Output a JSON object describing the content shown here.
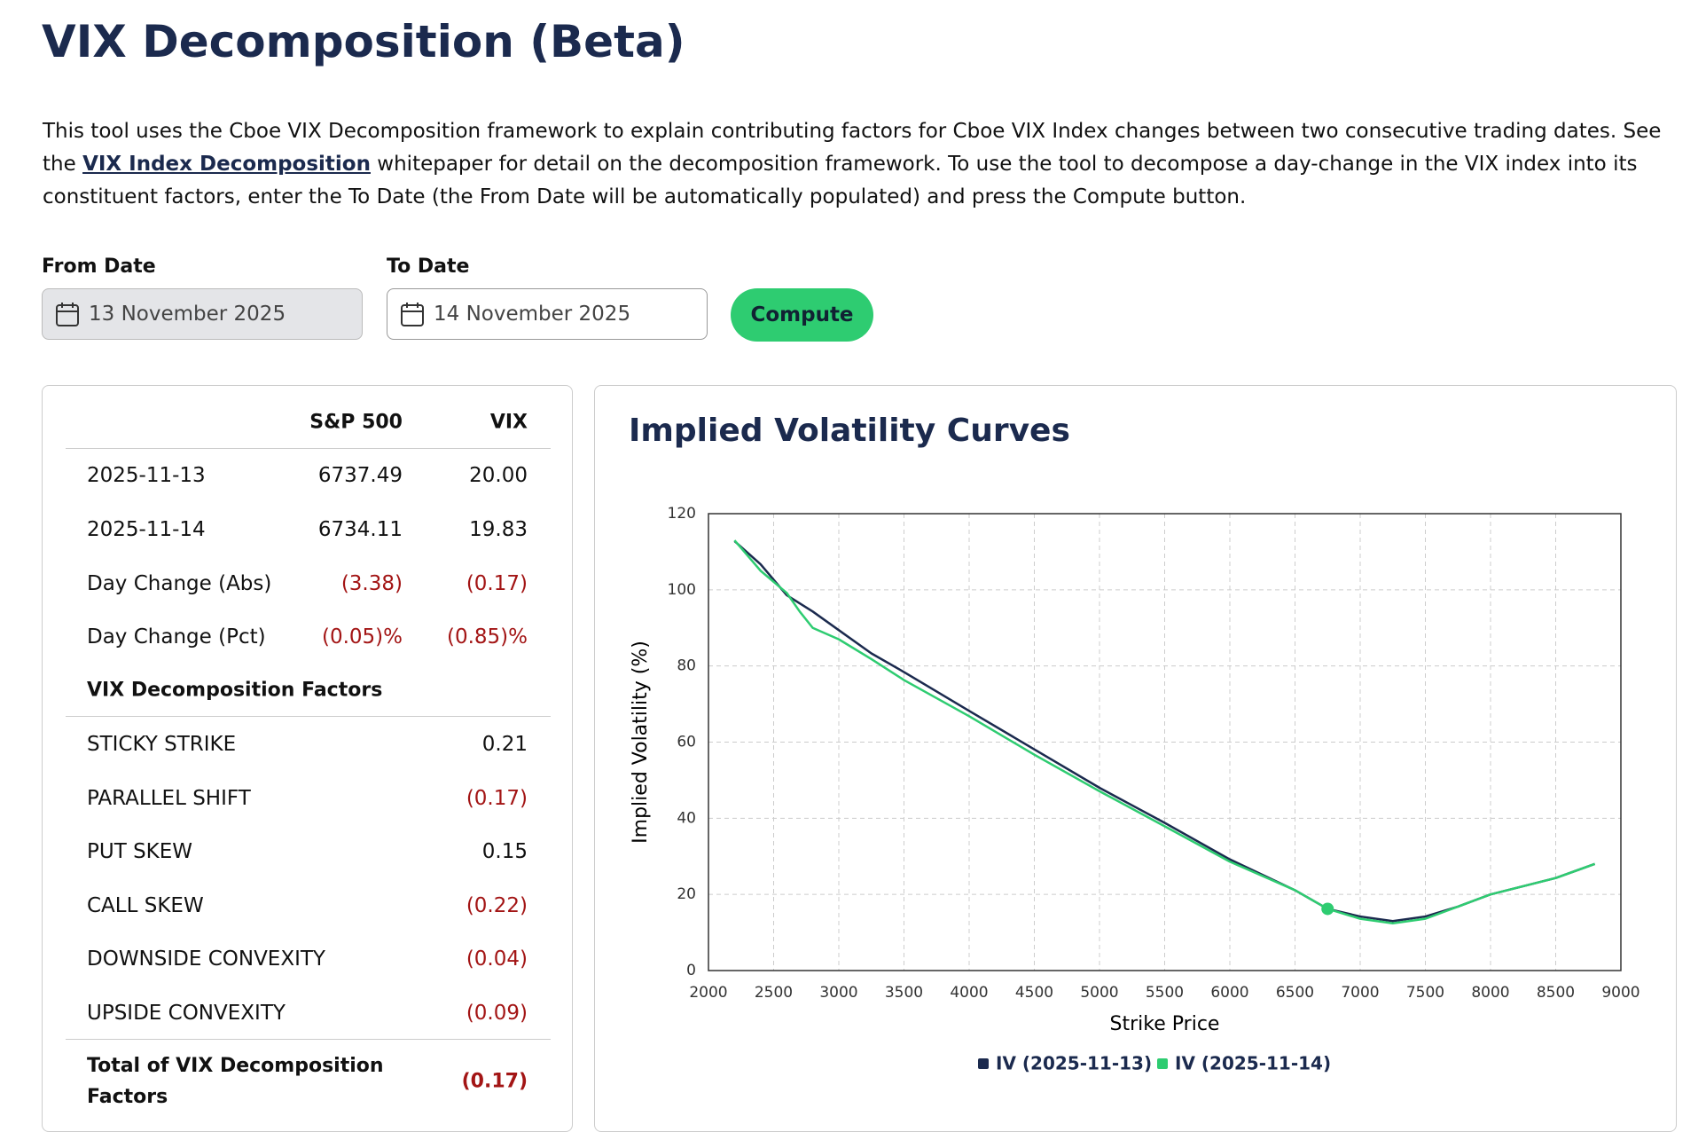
{
  "header": {
    "title": "VIX Decomposition (Beta)"
  },
  "intro": {
    "before": "This tool uses the Cboe VIX Decomposition framework to explain contributing factors for Cboe VIX Index changes between two consecutive trading dates. See the ",
    "link": "VIX Index Decomposition",
    "after": " whitepaper for detail on the decomposition framework. To use the tool to decompose a day-change in the VIX index into its constituent factors, enter the To Date (the From Date will be automatically populated) and press the Compute button."
  },
  "form": {
    "from_label": "From Date",
    "from_value": "13 November 2025",
    "to_label": "To Date",
    "to_value": "14 November 2025",
    "button": "Compute"
  },
  "table": {
    "headers": [
      "S&P 500",
      "VIX"
    ],
    "rows": [
      [
        "2025-11-13",
        "6737.49",
        "20.00"
      ],
      [
        "2025-11-14",
        "6734.11",
        "19.83"
      ],
      [
        "Day Change (Abs)",
        "(3.38)",
        "(0.17)"
      ],
      [
        "Day Change (Pct)",
        "(0.05)%",
        "(0.85)%"
      ]
    ],
    "section": "VIX Decomposition Factors",
    "factors": [
      [
        "STICKY STRIKE",
        "0.21"
      ],
      [
        "PARALLEL SHIFT",
        "(0.17)"
      ],
      [
        "PUT SKEW",
        "0.15"
      ],
      [
        "CALL SKEW",
        "(0.22)"
      ],
      [
        "DOWNSIDE CONVEXITY",
        "(0.04)"
      ],
      [
        "UPSIDE CONVEXITY",
        "(0.09)"
      ]
    ],
    "total": [
      "Total of VIX Decomposition Factors",
      "(0.17)"
    ]
  },
  "chart_data": {
    "type": "line",
    "title": "Implied Volatility Curves",
    "x_label": "Strike Price",
    "y_label": "Implied Volatility (%)",
    "xlim": [
      2000,
      9000
    ],
    "xticks": [
      2000,
      2500,
      3000,
      3500,
      4000,
      4500,
      5000,
      5500,
      6000,
      6500,
      7000,
      7500,
      8000,
      8500,
      9000
    ],
    "ylim": [
      0,
      120
    ],
    "yticks": [
      0,
      20,
      40,
      60,
      80,
      100,
      120
    ],
    "grid": true,
    "series": [
      {
        "name": "IV (2025-11-13)",
        "color": "#1b2a4e",
        "x": [
          2200,
          2400,
          2600,
          2800,
          3000,
          3250,
          3500,
          4000,
          4500,
          5000,
          5500,
          6000,
          6500,
          6750,
          7000,
          7250,
          7500,
          7750,
          8000,
          8500,
          8800
        ],
        "values": [
          112.8,
          106.7,
          98.6,
          94.3,
          89.4,
          83.3,
          78.4,
          68.2,
          58.1,
          48,
          38.8,
          29.2,
          21.1,
          16.2,
          14.2,
          13,
          14.2,
          16.8,
          20,
          24.3,
          28
        ]
      },
      {
        "name": "IV (2025-11-14)",
        "color": "#2ecc71",
        "x": [
          2200,
          2400,
          2600,
          2700,
          2800,
          3000,
          3250,
          3500,
          4000,
          4500,
          5000,
          5500,
          6000,
          6500,
          6750,
          7000,
          7250,
          7500,
          7750,
          8000,
          8500,
          8800
        ],
        "values": [
          113,
          105,
          99.2,
          94.3,
          90,
          87,
          81.8,
          76.3,
          66.8,
          56.7,
          47.1,
          37.9,
          28.6,
          21.1,
          16.2,
          13.6,
          12.4,
          13.6,
          16.8,
          20,
          24.3,
          28
        ]
      }
    ],
    "marker": {
      "x": 6750,
      "y": 16.2,
      "color": "#2ecc71"
    }
  }
}
